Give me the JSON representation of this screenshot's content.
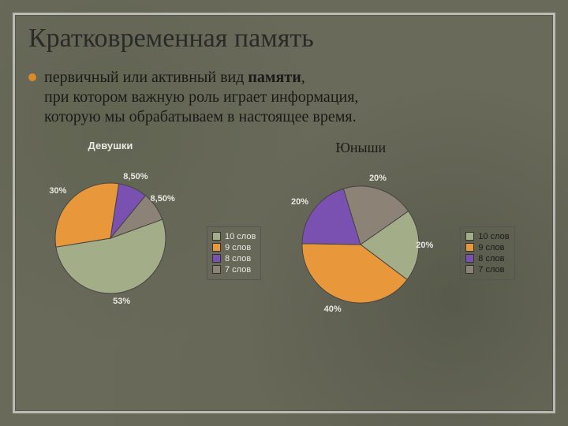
{
  "title": "Кратковременная память",
  "bullet_color": "#d98a2b",
  "body_line1_pre": "первичный или активный вид ",
  "body_line1_bold": "памяти",
  "body_line1_post": ",",
  "body_line2": "при котором важную роль играет информация,",
  "body_line3": "которую мы обрабатываем в настоящее время.",
  "legend_items": [
    {
      "label": "10 слов",
      "color": "#a3ad87"
    },
    {
      "label": "9 слов",
      "color": "#e8983a"
    },
    {
      "label": "8 слов",
      "color": "#7a51b0"
    },
    {
      "label": "7 слов",
      "color": "#8d8276"
    }
  ],
  "chart1": {
    "title": "Девушки",
    "title_color": "#e8e7e2",
    "slices": [
      {
        "value": 53,
        "color": "#a3ad87",
        "label": "53%"
      },
      {
        "value": 30,
        "color": "#e8983a",
        "label": "30%"
      },
      {
        "value": 8.5,
        "color": "#7a51b0",
        "label": "8,50%"
      },
      {
        "value": 8.5,
        "color": "#8d8276",
        "label": "8,50%"
      }
    ],
    "radius": 70,
    "label_color": "#e8e7e2",
    "start_angle": 70
  },
  "chart2": {
    "title": "Юныши",
    "title_color": "#1a1a18",
    "slices": [
      {
        "value": 20,
        "color": "#a3ad87",
        "label": "20%"
      },
      {
        "value": 40,
        "color": "#e8983a",
        "label": "40%"
      },
      {
        "value": 20,
        "color": "#7a51b0",
        "label": "20%"
      },
      {
        "value": 20,
        "color": "#8d8276",
        "label": "20%"
      }
    ],
    "radius": 74,
    "label_color": "#e8e7e2",
    "start_angle": 55
  },
  "slice_border": "#444444"
}
